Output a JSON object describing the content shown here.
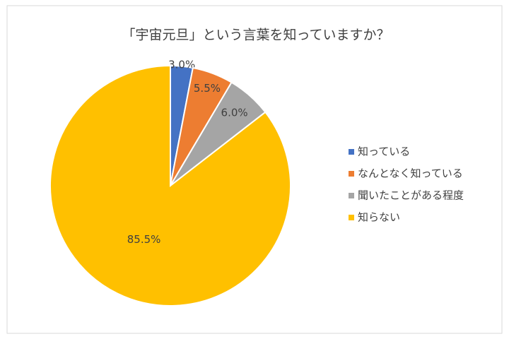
{
  "chart_data": {
    "type": "pie",
    "title": "「宇宙元旦」という言葉を知っていますか？",
    "categories": [
      "知っている",
      "なんとなく知っている",
      "聞いたことがある程度",
      "知らない"
    ],
    "values": [
      3,
      5.5,
      6,
      85.5
    ],
    "value_labels": [
      "3.0%",
      "5.5%",
      "6.0%",
      "85.5%"
    ],
    "colors": [
      "#4472c4",
      "#ed7d31",
      "#a5a5a5",
      "#ffc000"
    ],
    "legend": "right"
  }
}
